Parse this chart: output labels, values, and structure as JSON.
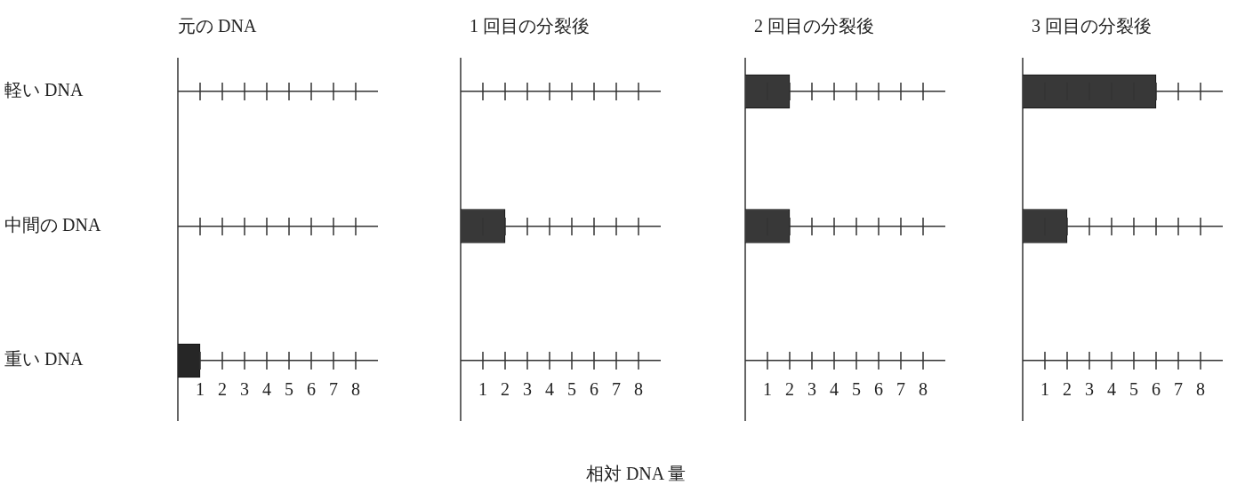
{
  "chart_data": [
    {
      "type": "bar",
      "orientation": "horizontal",
      "title": "元の DNA",
      "categories": [
        "軽い DNA",
        "中間の DNA",
        "重い DNA"
      ],
      "values": [
        0,
        0,
        1
      ],
      "color": "#262626",
      "xlim": [
        0,
        9
      ],
      "xticks": [
        1,
        2,
        3,
        4,
        5,
        6,
        7,
        8
      ],
      "grid": "y",
      "legend": false
    },
    {
      "type": "bar",
      "orientation": "horizontal",
      "title": "1 回目の分裂後",
      "xlabel": "相対 DNA 量",
      "categories": [
        null,
        null,
        null
      ],
      "values": [
        0,
        2,
        0
      ],
      "color": "#383838",
      "xlim": [
        0,
        9
      ],
      "xticks": [
        1,
        2,
        3,
        4,
        5,
        6,
        7,
        8
      ],
      "grid": "y",
      "legend": false,
      "tick_labels": "x"
    },
    {
      "type": "bar",
      "orientation": "horizontal",
      "title": "2 回目の分裂後",
      "categories": [
        null,
        null,
        null
      ],
      "values": [
        2,
        2,
        0
      ],
      "color": "#383838",
      "xlim": [
        0,
        9
      ],
      "xticks": [
        1,
        2,
        3,
        4,
        5,
        6,
        7,
        8
      ],
      "grid": "y",
      "legend": false,
      "tick_labels": "x"
    },
    {
      "type": "bar",
      "orientation": "horizontal",
      "title": "3 回目の分裂後",
      "categories": [
        null,
        null,
        null
      ],
      "values": [
        6,
        2,
        0
      ],
      "color": "#383838",
      "xlim": [
        0,
        9
      ],
      "xticks": [
        1,
        2,
        3,
        4,
        5,
        6,
        7,
        8
      ],
      "grid": "y",
      "legend": false,
      "tick_labels": "x"
    }
  ]
}
